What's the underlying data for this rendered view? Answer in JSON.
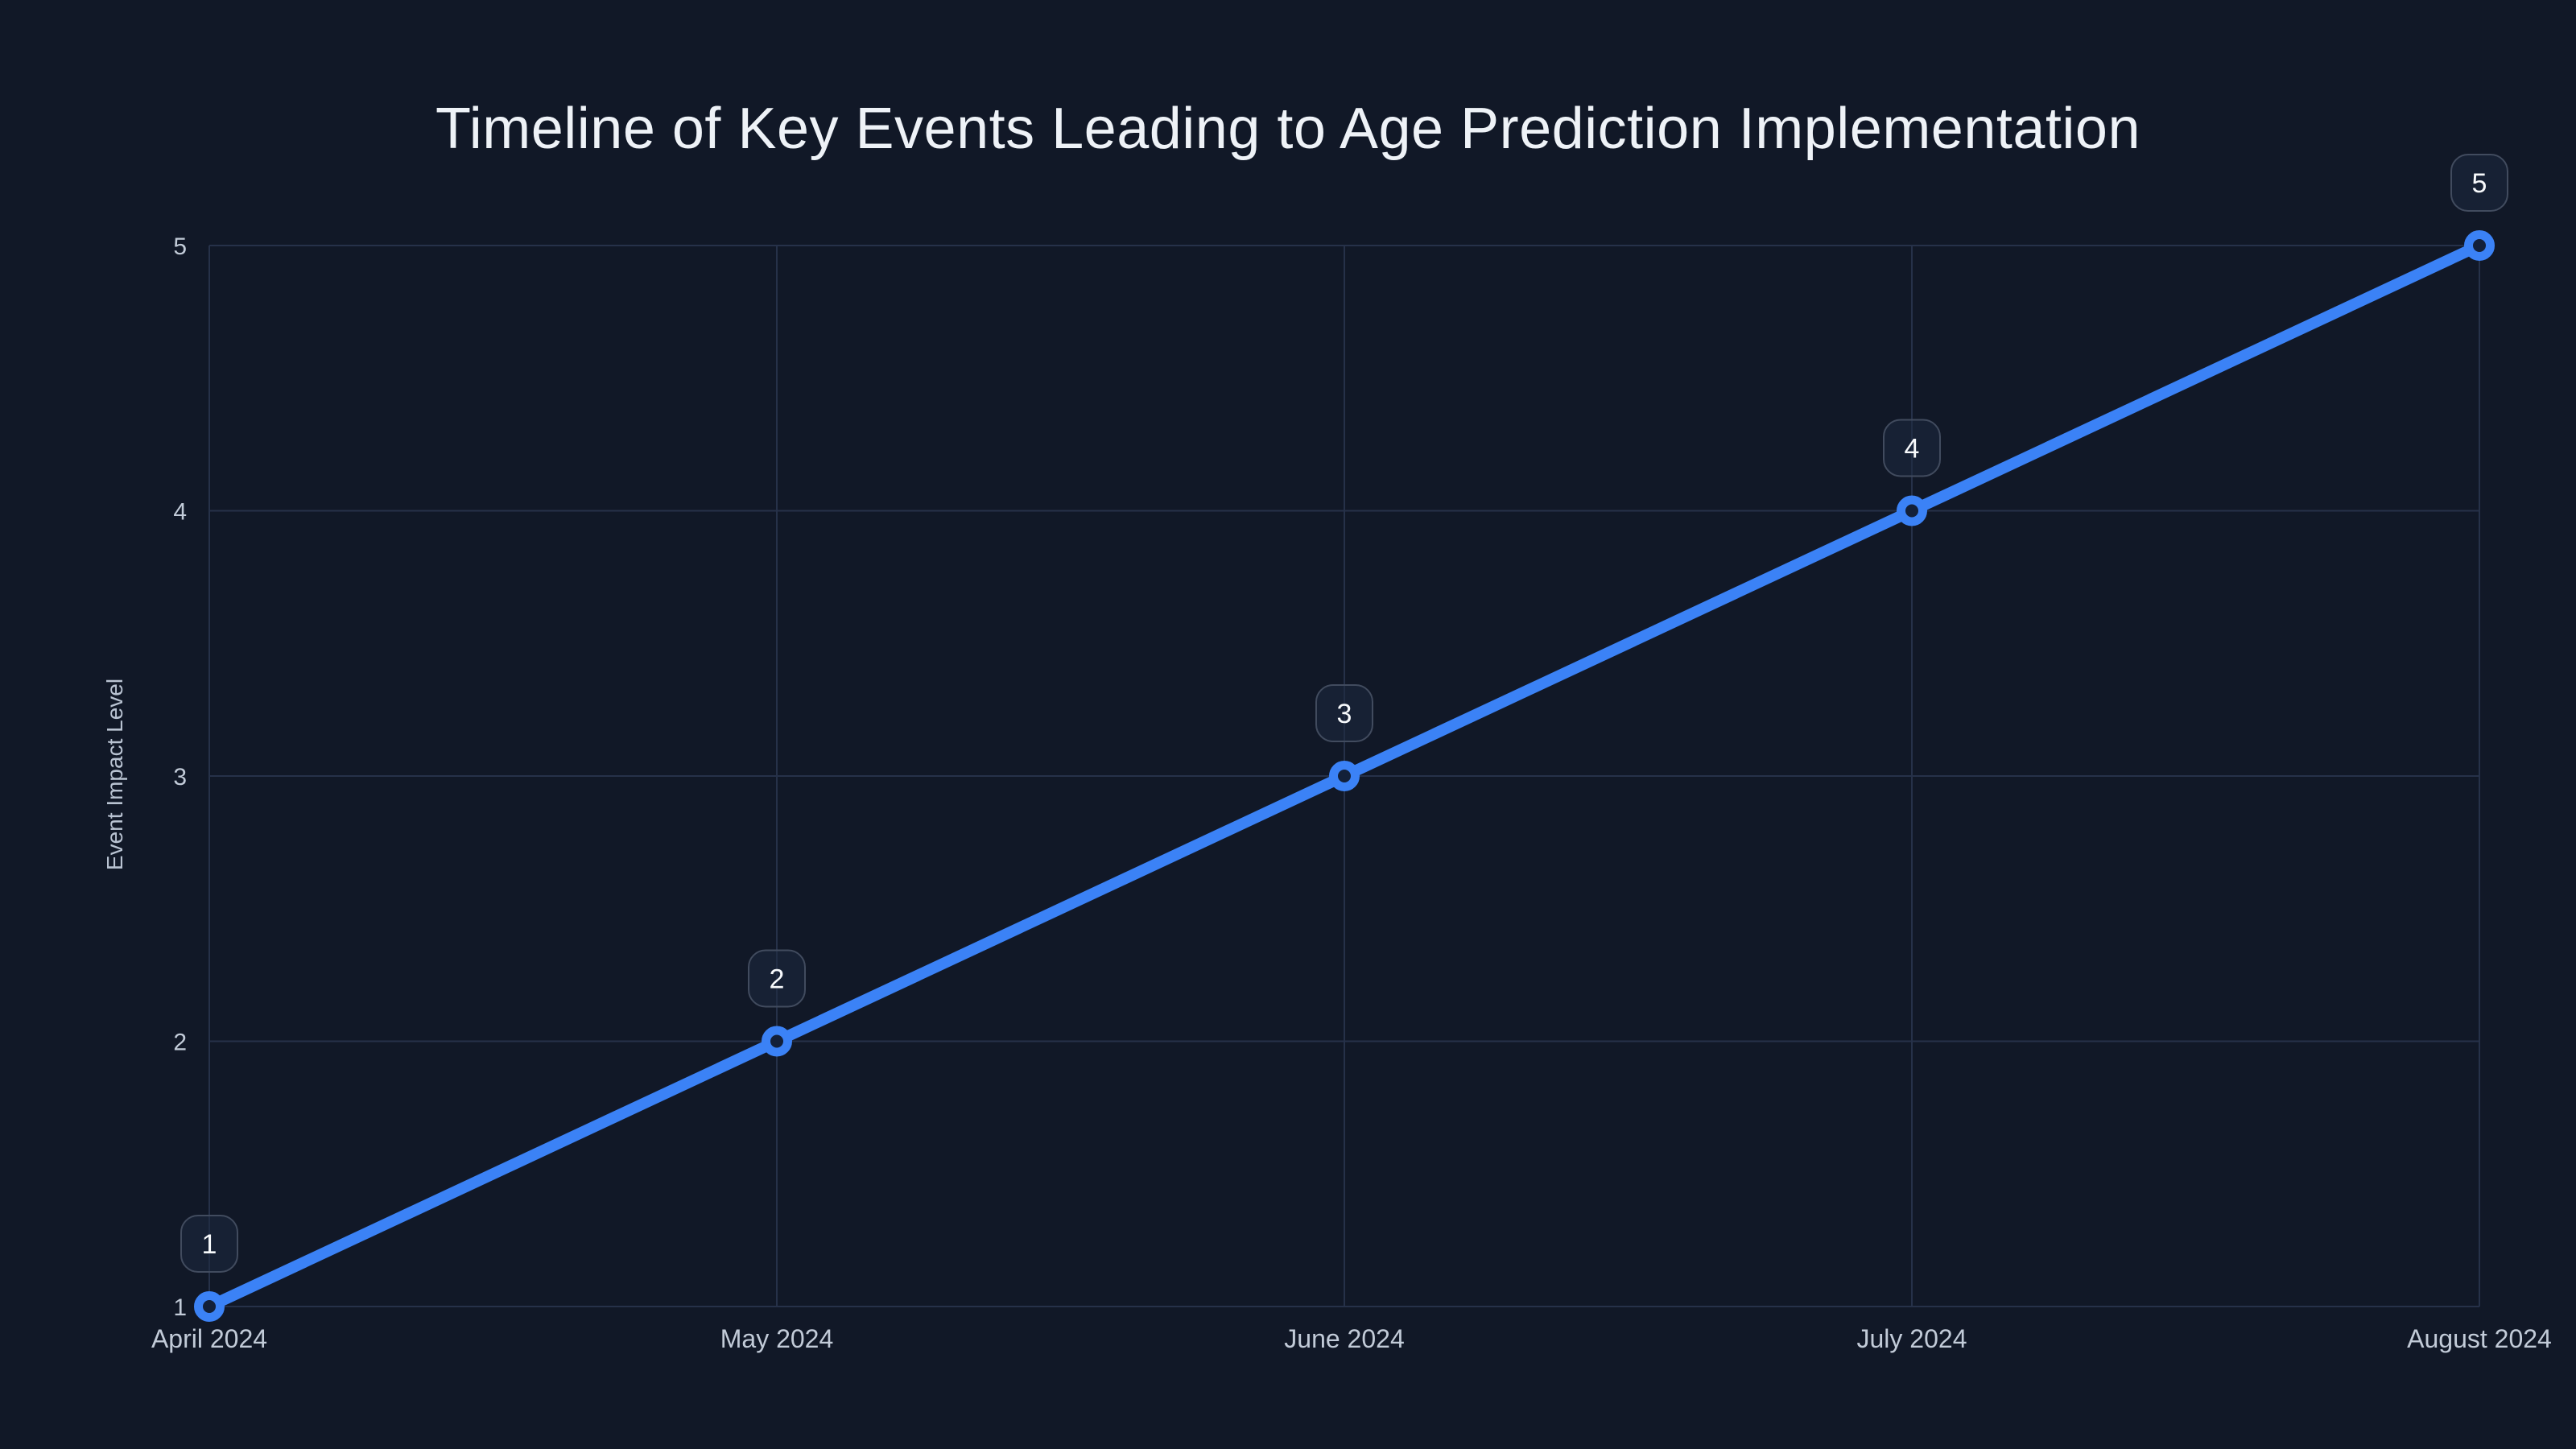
{
  "chart_data": {
    "type": "line",
    "title": "Timeline of Key Events Leading to Age Prediction Implementation",
    "xlabel": "",
    "ylabel": "Event Impact Level",
    "categories": [
      "April 2024",
      "May 2024",
      "June 2024",
      "July 2024",
      "August 2024"
    ],
    "series": [
      {
        "name": "Event Impact Level",
        "values": [
          1,
          2,
          3,
          4,
          5
        ]
      }
    ],
    "point_labels": [
      "1",
      "2",
      "3",
      "4",
      "5"
    ],
    "yticks": [
      1,
      2,
      3,
      4,
      5
    ],
    "ylim": [
      1,
      5
    ],
    "grid": true,
    "legend": false,
    "colors": {
      "background": "#111827",
      "line": "#3b82f6",
      "marker_stroke": "#3b82f6",
      "marker_fill": "#132039",
      "grid": "#263149",
      "tick_label": "#c2cbd8",
      "title": "#eef2f7",
      "axis_label": "#b9c3d2",
      "badge_fill": "rgba(30,41,64,0.55)",
      "badge_border": "#414b5e",
      "badge_text": "#f8fafc"
    }
  }
}
